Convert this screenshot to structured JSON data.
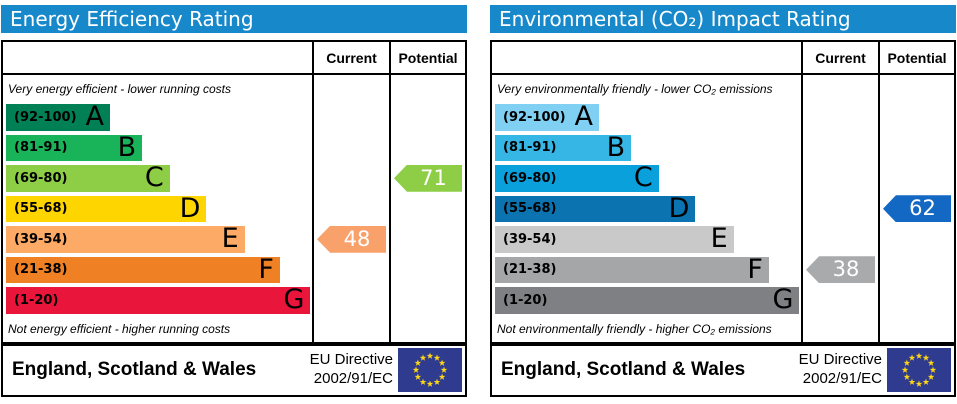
{
  "chart_data": [
    {
      "type": "bar",
      "title": "Energy Efficiency Rating",
      "categories": [
        "A (92-100)",
        "B (81-91)",
        "C (69-80)",
        "D (55-68)",
        "E (39-54)",
        "F (21-38)",
        "G (1-20)"
      ],
      "values": [
        34,
        44.5,
        53.5,
        65.5,
        78,
        89.5,
        99.5
      ],
      "values_note": "decorative stepped bar lengths, % of column width",
      "current": 48,
      "current_band": "E",
      "potential": 71,
      "potential_band": "C",
      "annotations": [
        "Very energy efficient - lower running costs",
        "Not energy efficient - higher running costs"
      ],
      "legend_position": "none",
      "grid": false
    },
    {
      "type": "bar",
      "title": "Environmental (CO₂) Impact Rating",
      "categories": [
        "A (92-100)",
        "B (81-91)",
        "C (69-80)",
        "D (55-68)",
        "E (39-54)",
        "F (21-38)",
        "G (1-20)"
      ],
      "values": [
        34,
        44.5,
        53.5,
        65.5,
        78,
        89.5,
        99.5
      ],
      "values_note": "decorative stepped bar lengths, % of column width",
      "current": 38,
      "current_band": "F",
      "potential": 62,
      "potential_band": "D",
      "annotations": [
        "Very environmentally friendly - lower CO₂ emissions",
        "Not environmentally friendly - higher CO₂ emissions"
      ],
      "legend_position": "none",
      "grid": false
    }
  ],
  "columns": {
    "current": "Current",
    "potential": "Potential"
  },
  "panels": [
    {
      "title": "Energy Efficiency Rating",
      "top_caption": "Very energy efficient - lower running costs",
      "bottom_caption": "Not energy efficient - higher running costs",
      "bands": [
        {
          "range": "(92-100)",
          "letter": "A",
          "color": "#008054",
          "width_pct": 34
        },
        {
          "range": "(81-91)",
          "letter": "B",
          "color": "#19b459",
          "width_pct": 44.5
        },
        {
          "range": "(69-80)",
          "letter": "C",
          "color": "#8dce46",
          "width_pct": 53.5
        },
        {
          "range": "(55-68)",
          "letter": "D",
          "color": "#ffd500",
          "width_pct": 65.5
        },
        {
          "range": "(39-54)",
          "letter": "E",
          "color": "#fcaa65",
          "width_pct": 78
        },
        {
          "range": "(21-38)",
          "letter": "F",
          "color": "#ef8023",
          "width_pct": 89.5
        },
        {
          "range": "(1-20)",
          "letter": "G",
          "color": "#e9153b",
          "width_pct": 99.5
        }
      ],
      "current": {
        "value": "48",
        "band_index": 4,
        "color": "#f9a16a"
      },
      "potential": {
        "value": "71",
        "band_index": 2,
        "color": "#8dce46"
      }
    },
    {
      "title": "Environmental (CO₂) Impact Rating",
      "top_caption": "Very environmentally friendly - lower CO₂ emissions",
      "bottom_caption": "Not environmentally friendly - higher CO₂ emissions",
      "bands": [
        {
          "range": "(92-100)",
          "letter": "A",
          "color": "#7fd0f2",
          "width_pct": 34
        },
        {
          "range": "(81-91)",
          "letter": "B",
          "color": "#35b6e5",
          "width_pct": 44.5
        },
        {
          "range": "(69-80)",
          "letter": "C",
          "color": "#0aa0dc",
          "width_pct": 53.5
        },
        {
          "range": "(55-68)",
          "letter": "D",
          "color": "#0b74b0",
          "width_pct": 65.5
        },
        {
          "range": "(39-54)",
          "letter": "E",
          "color": "#c9c9c9",
          "width_pct": 78
        },
        {
          "range": "(21-38)",
          "letter": "F",
          "color": "#a5a6a8",
          "width_pct": 89.5
        },
        {
          "range": "(1-20)",
          "letter": "G",
          "color": "#7e8083",
          "width_pct": 99.5
        }
      ],
      "current": {
        "value": "38",
        "band_index": 5,
        "color": "#a9aaab"
      },
      "potential": {
        "value": "62",
        "band_index": 3,
        "color": "#1268c3"
      }
    }
  ],
  "footer": {
    "region": "England, Scotland & Wales",
    "directive_line1": "EU Directive",
    "directive_line2": "2002/91/EC"
  },
  "colors": {
    "header_bg": "#1789cb",
    "flag_bg": "#2e3b8e",
    "flag_star": "#ffd617"
  }
}
